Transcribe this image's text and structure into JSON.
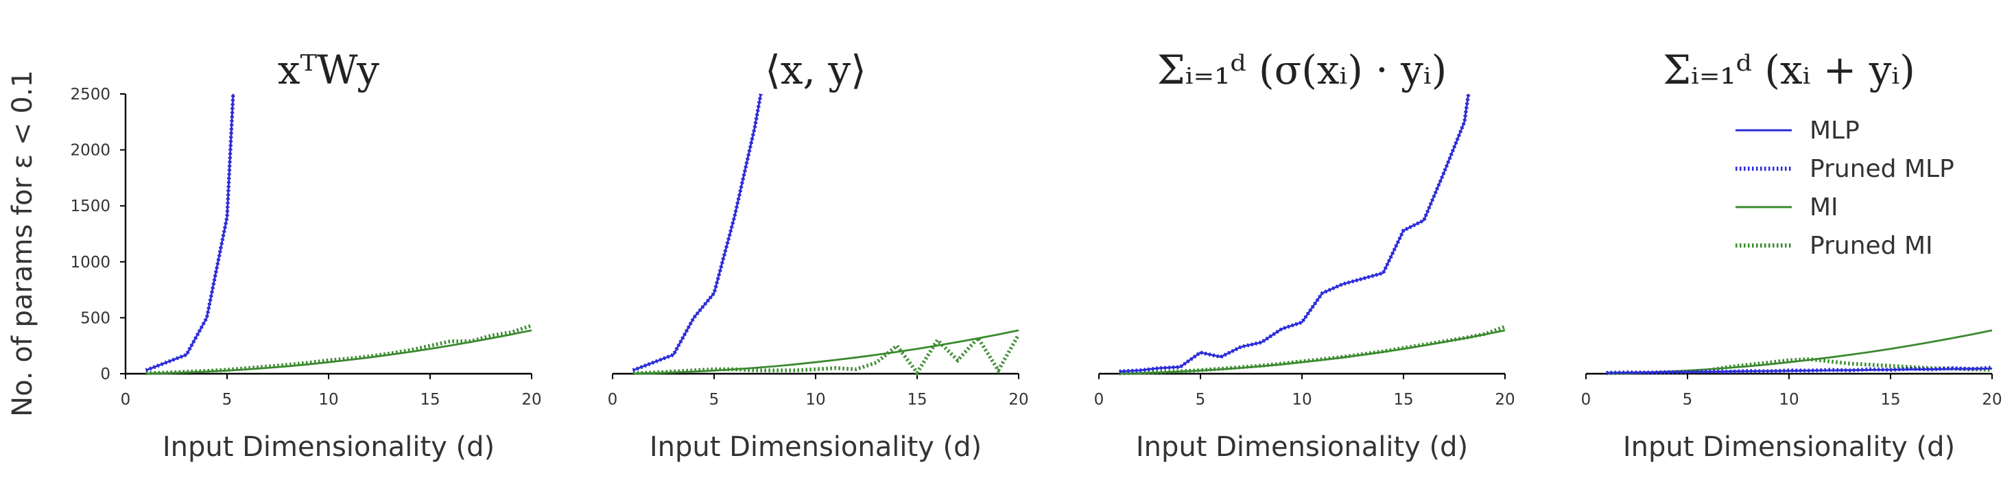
{
  "figure": {
    "ylabel": "No. of params for ε < 0.1",
    "colors": {
      "MLP": "#2b2bd9",
      "MI": "#3a8a2e"
    },
    "legend": {
      "placement": "top-right",
      "entries": [
        {
          "label": "MLP",
          "color": "#2b2bd9",
          "style": "solid"
        },
        {
          "label": "Pruned MLP",
          "color": "#2b2bd9",
          "style": "dotted"
        },
        {
          "label": "MI",
          "color": "#3a8a2e",
          "style": "solid"
        },
        {
          "label": "Pruned MI",
          "color": "#3a8a2e",
          "style": "dotted"
        }
      ]
    }
  },
  "chart_data": [
    {
      "type": "line",
      "title": "xᵀWy",
      "xlabel": "Input Dimensionality (d)",
      "ylabel": "No. of params for ε < 0.1",
      "xlim": [
        0,
        20
      ],
      "ylim": [
        0,
        2500
      ],
      "xticks": [
        "0",
        "5",
        "10",
        "15",
        "20"
      ],
      "yticks": [
        "0",
        "500",
        "1000",
        "1500",
        "2000",
        "2500"
      ],
      "series": [
        {
          "name": "MLP",
          "style": "solid",
          "color": "#2b2bd9",
          "x": [
            1,
            2,
            3,
            4,
            5,
            5.3
          ],
          "y": [
            30,
            100,
            170,
            500,
            1400,
            2500
          ]
        },
        {
          "name": "Pruned MLP",
          "style": "dotted",
          "color": "#2b2bd9",
          "x": [
            1,
            2,
            3,
            4,
            5,
            5.3
          ],
          "y": [
            30,
            100,
            170,
            500,
            1400,
            2500
          ]
        },
        {
          "name": "MI",
          "style": "solid",
          "color": "#3a8a2e",
          "x": [
            1,
            2,
            3,
            4,
            5,
            6,
            7,
            8,
            9,
            10,
            11,
            12,
            13,
            14,
            15,
            16,
            17,
            18,
            19,
            20
          ],
          "y": [
            2,
            5,
            11,
            19,
            28,
            39,
            52,
            67,
            84,
            103,
            123,
            145,
            169,
            195,
            222,
            252,
            283,
            316,
            351,
            388
          ]
        },
        {
          "name": "Pruned MI",
          "style": "dotted",
          "color": "#3a8a2e",
          "x": [
            1,
            2,
            3,
            4,
            5,
            6,
            7,
            8,
            9,
            10,
            11,
            12,
            13,
            14,
            15,
            16,
            17,
            18,
            19,
            20
          ],
          "y": [
            5,
            10,
            18,
            26,
            35,
            50,
            65,
            80,
            98,
            120,
            135,
            155,
            180,
            210,
            250,
            290,
            290,
            340,
            370,
            430
          ]
        }
      ]
    },
    {
      "type": "line",
      "title": "⟨x, y⟩",
      "xlabel": "Input Dimensionality (d)",
      "xlim": [
        0,
        20
      ],
      "ylim": [
        0,
        2500
      ],
      "xticks": [
        "0",
        "5",
        "10",
        "15",
        "20"
      ],
      "series": [
        {
          "name": "MLP",
          "style": "solid",
          "color": "#2b2bd9",
          "x": [
            1,
            2,
            3,
            4,
            5,
            6,
            7,
            7.3
          ],
          "y": [
            30,
            100,
            170,
            500,
            720,
            1400,
            2200,
            2500
          ]
        },
        {
          "name": "Pruned MLP",
          "style": "dotted",
          "color": "#2b2bd9",
          "x": [
            1,
            2,
            3,
            4,
            5,
            6,
            7,
            7.3
          ],
          "y": [
            30,
            100,
            170,
            500,
            720,
            1400,
            2200,
            2500
          ]
        },
        {
          "name": "MI",
          "style": "solid",
          "color": "#3a8a2e",
          "x": [
            1,
            2,
            3,
            4,
            5,
            6,
            7,
            8,
            9,
            10,
            11,
            12,
            13,
            14,
            15,
            16,
            17,
            18,
            19,
            20
          ],
          "y": [
            2,
            5,
            11,
            19,
            28,
            39,
            52,
            67,
            84,
            103,
            123,
            145,
            169,
            195,
            222,
            252,
            283,
            316,
            351,
            388
          ]
        },
        {
          "name": "Pruned MI",
          "style": "dotted",
          "color": "#3a8a2e",
          "x": [
            1,
            2,
            3,
            4,
            5,
            6,
            7,
            8,
            9,
            10,
            11,
            12,
            13,
            14,
            15,
            16,
            17,
            18,
            19,
            20
          ],
          "y": [
            5,
            10,
            20,
            30,
            40,
            40,
            30,
            30,
            30,
            40,
            50,
            40,
            100,
            250,
            10,
            300,
            120,
            320,
            30,
            350
          ]
        }
      ]
    },
    {
      "type": "line",
      "title": "Σᵢ₌₁ᵈ (σ(xᵢ) · yᵢ)",
      "xlabel": "Input Dimensionality (d)",
      "xlim": [
        0,
        20
      ],
      "ylim": [
        0,
        2500
      ],
      "xticks": [
        "0",
        "5",
        "10",
        "15",
        "20"
      ],
      "series": [
        {
          "name": "MLP",
          "style": "solid",
          "color": "#2b2bd9",
          "x": [
            1,
            2,
            3,
            4,
            5,
            6,
            7,
            8,
            9,
            10,
            11,
            12,
            13,
            14,
            15,
            16,
            17,
            18,
            18.2
          ],
          "y": [
            20,
            30,
            50,
            60,
            190,
            150,
            240,
            280,
            400,
            460,
            720,
            800,
            850,
            900,
            1280,
            1370,
            1800,
            2250,
            2500
          ]
        },
        {
          "name": "Pruned MLP",
          "style": "dotted",
          "color": "#2b2bd9",
          "x": [
            1,
            2,
            3,
            4,
            5,
            6,
            7,
            8,
            9,
            10,
            11,
            12,
            13,
            14,
            15,
            16,
            17,
            18,
            18.2
          ],
          "y": [
            20,
            30,
            50,
            60,
            190,
            150,
            240,
            280,
            400,
            460,
            720,
            800,
            850,
            900,
            1280,
            1370,
            1800,
            2250,
            2500
          ]
        },
        {
          "name": "MI",
          "style": "solid",
          "color": "#3a8a2e",
          "x": [
            1,
            2,
            3,
            4,
            5,
            6,
            7,
            8,
            9,
            10,
            11,
            12,
            13,
            14,
            15,
            16,
            17,
            18,
            19,
            20
          ],
          "y": [
            2,
            5,
            11,
            19,
            28,
            39,
            52,
            67,
            84,
            103,
            123,
            145,
            169,
            195,
            222,
            252,
            283,
            316,
            351,
            388
          ]
        },
        {
          "name": "Pruned MI",
          "style": "dotted",
          "color": "#3a8a2e",
          "x": [
            1,
            2,
            3,
            4,
            5,
            6,
            7,
            8,
            9,
            10,
            11,
            12,
            13,
            14,
            15,
            16,
            17,
            18,
            19,
            20
          ],
          "y": [
            3,
            8,
            15,
            22,
            32,
            45,
            58,
            72,
            90,
            110,
            130,
            150,
            175,
            200,
            230,
            260,
            290,
            320,
            355,
            420
          ]
        }
      ]
    },
    {
      "type": "line",
      "title": "Σᵢ₌₁ᵈ (xᵢ + yᵢ)",
      "xlabel": "Input Dimensionality (d)",
      "xlim": [
        0,
        20
      ],
      "ylim": [
        0,
        2500
      ],
      "xticks": [
        "0",
        "5",
        "10",
        "15",
        "20"
      ],
      "series": [
        {
          "name": "MLP",
          "style": "solid",
          "color": "#2b2bd9",
          "x": [
            1,
            2,
            3,
            4,
            5,
            6,
            7,
            8,
            9,
            10,
            11,
            12,
            13,
            14,
            15,
            16,
            17,
            18,
            19,
            20
          ],
          "y": [
            8,
            10,
            12,
            14,
            16,
            18,
            20,
            22,
            24,
            26,
            28,
            30,
            32,
            34,
            36,
            38,
            40,
            42,
            44,
            46
          ]
        },
        {
          "name": "Pruned MLP",
          "style": "dotted",
          "color": "#2b2bd9",
          "x": [
            1,
            2,
            3,
            4,
            5,
            6,
            7,
            8,
            9,
            10,
            11,
            12,
            13,
            14,
            15,
            16,
            17,
            18,
            19,
            20
          ],
          "y": [
            8,
            12,
            10,
            15,
            14,
            20,
            18,
            25,
            22,
            30,
            28,
            35,
            30,
            40,
            35,
            45,
            38,
            50,
            42,
            55
          ]
        },
        {
          "name": "MI",
          "style": "solid",
          "color": "#3a8a2e",
          "x": [
            1,
            2,
            3,
            4,
            5,
            6,
            7,
            8,
            9,
            10,
            11,
            12,
            13,
            14,
            15,
            16,
            17,
            18,
            19,
            20
          ],
          "y": [
            2,
            5,
            11,
            19,
            28,
            39,
            52,
            67,
            84,
            103,
            123,
            145,
            169,
            195,
            222,
            252,
            283,
            316,
            351,
            388
          ]
        },
        {
          "name": "Pruned MI",
          "style": "dotted",
          "color": "#3a8a2e",
          "x": [
            1,
            2,
            3,
            4,
            5,
            6,
            7,
            8,
            9,
            10,
            11,
            12,
            13,
            14,
            15,
            16,
            17,
            18,
            19,
            20
          ],
          "y": [
            5,
            8,
            10,
            12,
            15,
            30,
            60,
            80,
            100,
            120,
            130,
            110,
            90,
            80,
            70,
            60,
            50,
            45,
            40,
            35
          ]
        }
      ]
    }
  ]
}
